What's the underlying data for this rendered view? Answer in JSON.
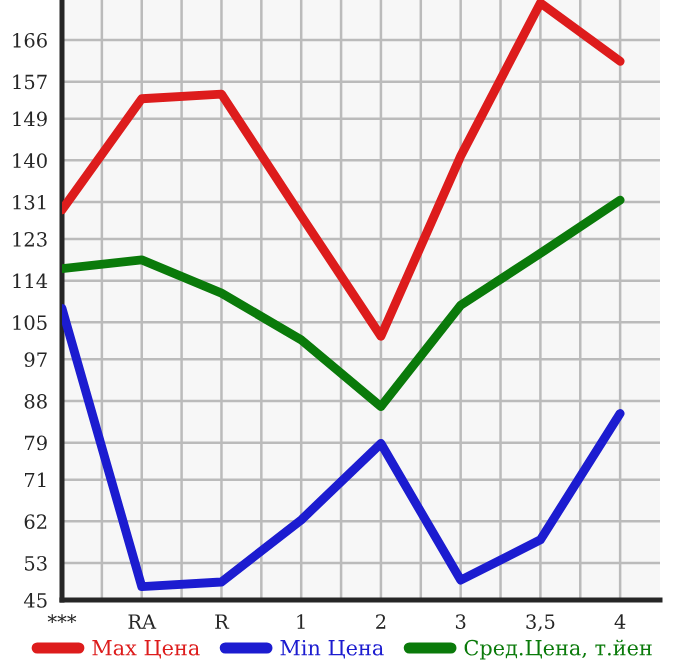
{
  "chart_data": {
    "type": "line",
    "categories": [
      "***",
      "RA",
      "R",
      "1",
      "2",
      "3",
      "3,5",
      "4"
    ],
    "series": [
      {
        "name": "Max Цена",
        "color": "#dd1c1c",
        "values": [
          129.3,
          153.3,
          154.3,
          128,
          102.0,
          140.9,
          174,
          161.4
        ]
      },
      {
        "name": "Min Цена",
        "color": "#1c1cd0",
        "values": [
          108,
          47.9,
          48.9,
          62.3,
          78.8,
          49.3,
          58,
          85.3
        ]
      },
      {
        "name": "Сред.Цена, т.йен",
        "color": "#0a7a0a",
        "values": [
          116.6,
          118.5,
          111.3,
          101.2,
          86.8,
          108.7,
          119.9,
          131.4
        ]
      }
    ],
    "ylim": [
      45,
      174.64
    ],
    "yticks": [
      45,
      53,
      62,
      71,
      79,
      88,
      97,
      105,
      114,
      123,
      131,
      140,
      149,
      157,
      166
    ],
    "grid": true,
    "legend": "bottom",
    "marker": "none",
    "line_style": "solid"
  }
}
